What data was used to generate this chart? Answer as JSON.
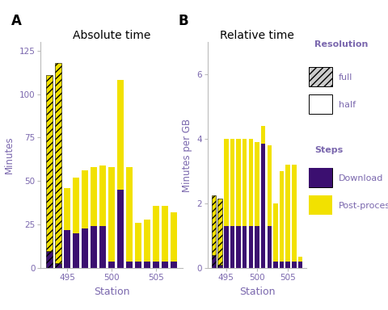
{
  "panel_A": {
    "title": "Absolute time",
    "ylabel": "Minutes",
    "xlabel": "Station",
    "ylim": [
      0,
      130
    ],
    "yticks": [
      0,
      25,
      50,
      75,
      100,
      125
    ],
    "xticks": [
      495,
      500,
      505
    ],
    "bars": [
      {
        "station": 493,
        "resolution": "full",
        "download": 10,
        "postprocess": 101
      },
      {
        "station": 494,
        "resolution": "full",
        "download": 3,
        "postprocess": 115
      },
      {
        "station": 495,
        "resolution": "half",
        "download": 22,
        "postprocess": 24
      },
      {
        "station": 496,
        "resolution": "half",
        "download": 20,
        "postprocess": 32
      },
      {
        "station": 497,
        "resolution": "half",
        "download": 23,
        "postprocess": 33
      },
      {
        "station": 498,
        "resolution": "half",
        "download": 24,
        "postprocess": 34
      },
      {
        "station": 499,
        "resolution": "half",
        "download": 24,
        "postprocess": 35
      },
      {
        "station": 500,
        "resolution": "half",
        "download": 4,
        "postprocess": 54
      },
      {
        "station": 501,
        "resolution": "half",
        "download": 45,
        "postprocess": 63
      },
      {
        "station": 502,
        "resolution": "half",
        "download": 4,
        "postprocess": 54
      },
      {
        "station": 503,
        "resolution": "half",
        "download": 4,
        "postprocess": 22
      },
      {
        "station": 504,
        "resolution": "half",
        "download": 4,
        "postprocess": 24
      },
      {
        "station": 505,
        "resolution": "half",
        "download": 4,
        "postprocess": 32
      },
      {
        "station": 506,
        "resolution": "half",
        "download": 4,
        "postprocess": 32
      },
      {
        "station": 507,
        "resolution": "half",
        "download": 4,
        "postprocess": 28
      }
    ]
  },
  "panel_B": {
    "title": "Relative time",
    "ylabel": "Minutes per GB",
    "xlabel": "Station",
    "ylim": [
      0,
      7
    ],
    "yticks": [
      0,
      2,
      4,
      6
    ],
    "xticks": [
      495,
      500,
      505
    ],
    "bars": [
      {
        "station": 493,
        "resolution": "full",
        "download": 0.4,
        "postprocess": 1.85
      },
      {
        "station": 494,
        "resolution": "full",
        "download": 0.1,
        "postprocess": 2.05
      },
      {
        "station": 495,
        "resolution": "half",
        "download": 1.3,
        "postprocess": 2.7
      },
      {
        "station": 496,
        "resolution": "half",
        "download": 1.3,
        "postprocess": 2.7
      },
      {
        "station": 497,
        "resolution": "half",
        "download": 1.3,
        "postprocess": 2.7
      },
      {
        "station": 498,
        "resolution": "half",
        "download": 1.3,
        "postprocess": 2.7
      },
      {
        "station": 499,
        "resolution": "half",
        "download": 1.3,
        "postprocess": 2.7
      },
      {
        "station": 500,
        "resolution": "half",
        "download": 1.3,
        "postprocess": 2.6
      },
      {
        "station": 501,
        "resolution": "half",
        "download": 3.85,
        "postprocess": 0.55
      },
      {
        "station": 502,
        "resolution": "half",
        "download": 1.3,
        "postprocess": 2.5
      },
      {
        "station": 503,
        "resolution": "half",
        "download": 0.2,
        "postprocess": 1.8
      },
      {
        "station": 504,
        "resolution": "half",
        "download": 0.2,
        "postprocess": 2.8
      },
      {
        "station": 505,
        "resolution": "half",
        "download": 0.2,
        "postprocess": 3.0
      },
      {
        "station": 506,
        "resolution": "half",
        "download": 0.2,
        "postprocess": 3.0
      },
      {
        "station": 507,
        "resolution": "half",
        "download": 0.2,
        "postprocess": 0.15
      }
    ]
  },
  "colors": {
    "download": "#3B0F70",
    "postprocess": "#F2E100",
    "text_color": "#7B68AE",
    "spine_color": "#BBBBBB"
  },
  "bar_width": 0.72,
  "label_A": "A",
  "label_B": "B"
}
